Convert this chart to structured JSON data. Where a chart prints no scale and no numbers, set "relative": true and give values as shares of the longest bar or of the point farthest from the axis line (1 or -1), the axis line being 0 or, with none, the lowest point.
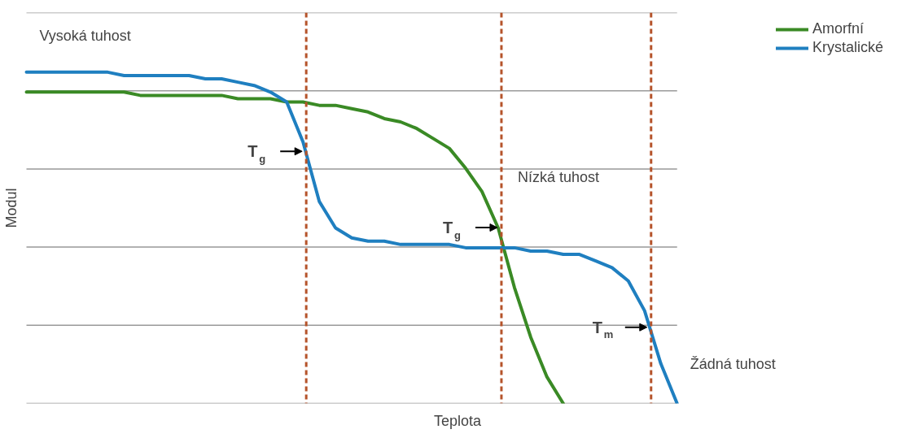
{
  "chart_data": {
    "type": "line",
    "relative": true,
    "xlabel": "Teplota",
    "ylabel": "Modul",
    "categories": [
      null,
      null,
      null,
      null,
      null,
      null,
      null,
      null,
      null,
      null,
      null,
      null,
      null,
      null,
      null,
      null,
      null,
      null,
      null,
      null,
      null,
      null,
      null,
      null,
      null,
      null,
      null,
      null,
      null,
      null,
      null,
      null,
      null,
      null,
      null,
      null,
      null,
      null,
      null,
      null,
      null
    ],
    "grid": "y",
    "legend": "top right",
    "series": [
      {
        "name": "Amorfní",
        "color": "#3a8a25",
        "values": [
          0.94,
          0.94,
          0.94,
          0.94,
          0.94,
          0.94,
          0.94,
          0.93,
          0.93,
          0.93,
          0.93,
          0.93,
          0.93,
          0.92,
          0.92,
          0.92,
          0.91,
          0.91,
          0.9,
          0.9,
          0.89,
          0.88,
          0.86,
          0.85,
          0.83,
          0.8,
          0.77,
          0.71,
          0.64,
          0.53,
          0.35,
          0.2,
          0.08,
          0.0,
          null,
          null,
          null,
          null,
          null,
          null,
          null
        ]
      },
      {
        "name": "Krystalické",
        "color": "#1f7fc0",
        "values": [
          1.0,
          1.0,
          1.0,
          1.0,
          1.0,
          1.0,
          0.99,
          0.99,
          0.99,
          0.99,
          0.99,
          0.98,
          0.98,
          0.97,
          0.96,
          0.94,
          0.91,
          0.79,
          0.61,
          0.53,
          0.5,
          0.49,
          0.49,
          0.48,
          0.48,
          0.48,
          0.48,
          0.47,
          0.47,
          0.47,
          0.47,
          0.46,
          0.46,
          0.45,
          0.45,
          0.43,
          0.41,
          0.37,
          0.28,
          0.12,
          0.0
        ]
      }
    ],
    "annotations": [
      "Vysoká tuhost",
      "Nízká tuhost",
      "Žádná tuhost",
      "T$_{g}$",
      "T$_{g}$",
      "T$_{m}$"
    ]
  }
}
